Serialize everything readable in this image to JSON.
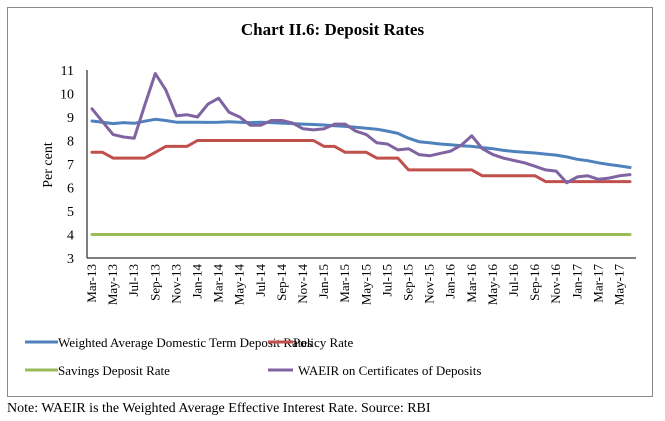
{
  "chart_data": {
    "type": "line",
    "title": "Chart II.6: Deposit Rates",
    "xlabel": "",
    "ylabel": "Per cent",
    "ylim": [
      3,
      11
    ],
    "yticks": [
      "3",
      "4",
      "5",
      "6",
      "7",
      "8",
      "9",
      "10",
      "11"
    ],
    "grid": false,
    "legend_position": "bottom",
    "x": [
      "Mar-13",
      "Apr-13",
      "May-13",
      "Jun-13",
      "Jul-13",
      "Aug-13",
      "Sep-13",
      "Oct-13",
      "Nov-13",
      "Dec-13",
      "Jan-14",
      "Feb-14",
      "Mar-14",
      "Apr-14",
      "May-14",
      "Jun-14",
      "Jul-14",
      "Aug-14",
      "Sep-14",
      "Oct-14",
      "Nov-14",
      "Dec-14",
      "Jan-15",
      "Feb-15",
      "Mar-15",
      "Apr-15",
      "May-15",
      "Jun-15",
      "Jul-15",
      "Aug-15",
      "Sep-15",
      "Oct-15",
      "Nov-15",
      "Dec-15",
      "Jan-16",
      "Feb-16",
      "Mar-16",
      "Apr-16",
      "May-16",
      "Jun-16",
      "Jul-16",
      "Aug-16",
      "Sep-16",
      "Oct-16",
      "Nov-16",
      "Dec-16",
      "Jan-17",
      "Feb-17",
      "Mar-17",
      "Apr-17",
      "May-17",
      "Jun-17"
    ],
    "xtick_labels": [
      "Mar-13",
      "May-13",
      "Jul-13",
      "Sep-13",
      "Nov-13",
      "Jan-14",
      "Mar-14",
      "May-14",
      "Jul-14",
      "Sep-14",
      "Nov-14",
      "Jan-15",
      "Mar-15",
      "May-15",
      "Jul-15",
      "Sep-15",
      "Nov-15",
      "Jan-16",
      "Mar-16",
      "May-16",
      "Jul-16",
      "Sep-16",
      "Nov-16",
      "Jan-17",
      "Mar-17",
      "May-17"
    ],
    "series": [
      {
        "name": "Weighted Average Domestic Term Deposit Rates",
        "color": "#4f81bd",
        "values": [
          8.83,
          8.78,
          8.72,
          8.76,
          8.73,
          8.82,
          8.9,
          8.85,
          8.78,
          8.78,
          8.78,
          8.77,
          8.78,
          8.8,
          8.78,
          8.76,
          8.78,
          8.76,
          8.74,
          8.72,
          8.7,
          8.68,
          8.66,
          8.63,
          8.6,
          8.56,
          8.52,
          8.48,
          8.4,
          8.3,
          8.1,
          7.95,
          7.9,
          7.85,
          7.82,
          7.78,
          7.75,
          7.7,
          7.65,
          7.58,
          7.53,
          7.5,
          7.47,
          7.42,
          7.38,
          7.3,
          7.2,
          7.14,
          7.05,
          6.98,
          6.92,
          6.85
        ]
      },
      {
        "name": "Policy Rate",
        "color": "#c0504d",
        "values": [
          7.5,
          7.5,
          7.25,
          7.25,
          7.25,
          7.25,
          7.5,
          7.75,
          7.75,
          7.75,
          8.0,
          8.0,
          8.0,
          8.0,
          8.0,
          8.0,
          8.0,
          8.0,
          8.0,
          8.0,
          8.0,
          8.0,
          7.75,
          7.75,
          7.5,
          7.5,
          7.5,
          7.25,
          7.25,
          7.25,
          6.75,
          6.75,
          6.75,
          6.75,
          6.75,
          6.75,
          6.75,
          6.5,
          6.5,
          6.5,
          6.5,
          6.5,
          6.5,
          6.25,
          6.25,
          6.25,
          6.25,
          6.25,
          6.25,
          6.25,
          6.25,
          6.25
        ]
      },
      {
        "name": "Savings Deposit Rate",
        "color": "#9bbb59",
        "values": [
          4,
          4,
          4,
          4,
          4,
          4,
          4,
          4,
          4,
          4,
          4,
          4,
          4,
          4,
          4,
          4,
          4,
          4,
          4,
          4,
          4,
          4,
          4,
          4,
          4,
          4,
          4,
          4,
          4,
          4,
          4,
          4,
          4,
          4,
          4,
          4,
          4,
          4,
          4,
          4,
          4,
          4,
          4,
          4,
          4,
          4,
          4,
          4,
          4,
          4,
          4,
          4
        ]
      },
      {
        "name": "WAEIR on Certificates of Deposits",
        "color": "#8064a2",
        "values": [
          9.35,
          8.8,
          8.25,
          8.15,
          8.1,
          9.5,
          10.85,
          10.15,
          9.05,
          9.1,
          9.0,
          9.55,
          9.8,
          9.2,
          9.0,
          8.65,
          8.65,
          8.85,
          8.85,
          8.75,
          8.5,
          8.45,
          8.5,
          8.7,
          8.7,
          8.4,
          8.25,
          7.9,
          7.85,
          7.6,
          7.65,
          7.4,
          7.35,
          7.45,
          7.55,
          7.8,
          8.2,
          7.65,
          7.4,
          7.25,
          7.15,
          7.05,
          6.9,
          6.75,
          6.7,
          6.2,
          6.45,
          6.5,
          6.35,
          6.4,
          6.5,
          6.55
        ]
      }
    ]
  },
  "note": "Note: WAEIR is the Weighted Average Effective Interest Rate. Source: RBI"
}
